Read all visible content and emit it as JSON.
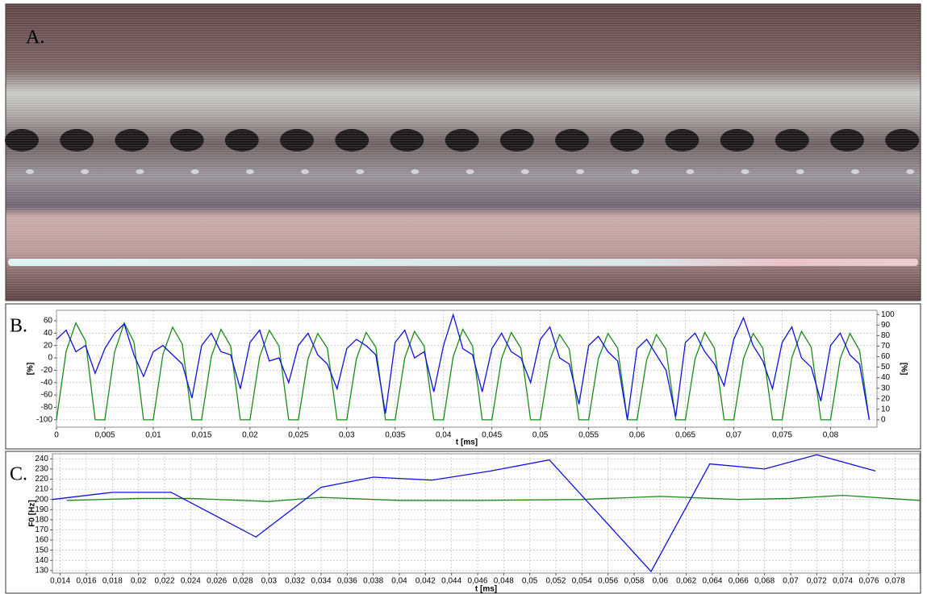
{
  "figure_labels": [
    "A.",
    "B.",
    "C."
  ],
  "chart_data": [
    {
      "type": "line",
      "x_label": "t [ms]",
      "y_label": "[%]",
      "y2_label": "[%]",
      "xlim": [
        0,
        0.0848
      ],
      "ylim": [
        -112,
        77
      ],
      "y2lim": [
        -7,
        104
      ],
      "xticks": [
        0,
        {
          "value": 0.005,
          "label": "0,005"
        },
        {
          "value": 0.01,
          "label": "0,01"
        },
        {
          "value": 0.015,
          "label": "0,015"
        },
        {
          "value": 0.02,
          "label": "0,02"
        },
        {
          "value": 0.025,
          "label": "0,025"
        },
        {
          "value": 0.03,
          "label": "0,03"
        },
        {
          "value": 0.035,
          "label": "0,035"
        },
        {
          "value": 0.04,
          "label": "0,04"
        },
        {
          "value": 0.045,
          "label": "0,045"
        },
        {
          "value": 0.05,
          "label": "0,05"
        },
        {
          "value": 0.055,
          "label": "0,055"
        },
        {
          "value": 0.06,
          "label": "0,06"
        },
        {
          "value": 0.065,
          "label": "0,065"
        },
        {
          "value": 0.07,
          "label": "0,07"
        },
        {
          "value": 0.075,
          "label": "0,075"
        },
        {
          "value": 0.08,
          "label": "0,08"
        }
      ],
      "yticks": [
        -100,
        -80,
        -60,
        -40,
        -20,
        0,
        20,
        40,
        60
      ],
      "y2ticks": [
        0,
        10,
        20,
        30,
        40,
        50,
        60,
        70,
        80,
        90,
        100
      ],
      "grid": true,
      "x": [
        0,
        0.001,
        0.002,
        0.003,
        0.004,
        0.005,
        0.006,
        0.007,
        0.008,
        0.009,
        0.01,
        0.011,
        0.012,
        0.013,
        0.014,
        0.015,
        0.016,
        0.017,
        0.018,
        0.019,
        0.02,
        0.021,
        0.022,
        0.023,
        0.024,
        0.025,
        0.026,
        0.027,
        0.028,
        0.029,
        0.03,
        0.031,
        0.032,
        0.033,
        0.034,
        0.035,
        0.036,
        0.037,
        0.038,
        0.039,
        0.04,
        0.041,
        0.042,
        0.043,
        0.044,
        0.045,
        0.046,
        0.047,
        0.048,
        0.049,
        0.05,
        0.051,
        0.052,
        0.053,
        0.054,
        0.055,
        0.056,
        0.057,
        0.058,
        0.059,
        0.06,
        0.061,
        0.062,
        0.063,
        0.064,
        0.065,
        0.066,
        0.067,
        0.068,
        0.069,
        0.07,
        0.071,
        0.072,
        0.073,
        0.074,
        0.075,
        0.076,
        0.077,
        0.078,
        0.079,
        0.08,
        0.081,
        0.082,
        0.083,
        0.084
      ],
      "series": [
        {
          "color": "#1a8a1a",
          "axis": "y2",
          "values": [
            0,
            65,
            92,
            75,
            0,
            0,
            64,
            92,
            74,
            0,
            0,
            62,
            88,
            72,
            0,
            0,
            60,
            86,
            70,
            0,
            0,
            60,
            85,
            70,
            0,
            0,
            58,
            82,
            68,
            0,
            0,
            58,
            83,
            69,
            0,
            0,
            59,
            84,
            70,
            0,
            0,
            60,
            86,
            70,
            0,
            0,
            58,
            83,
            68,
            0,
            0,
            57,
            81,
            67,
            0,
            0,
            58,
            82,
            68,
            0,
            0,
            57,
            81,
            67,
            0,
            0,
            58,
            83,
            68,
            0,
            0,
            58,
            82,
            68,
            0,
            0,
            59,
            84,
            69,
            0,
            0,
            58,
            82,
            66,
            0
          ]
        },
        {
          "color": "#1010e0",
          "values": [
            30,
            45,
            10,
            20,
            -25,
            15,
            40,
            55,
            5,
            -30,
            10,
            20,
            5,
            -10,
            -65,
            20,
            40,
            10,
            5,
            -50,
            25,
            45,
            -5,
            0,
            -40,
            20,
            40,
            5,
            -10,
            -50,
            15,
            30,
            20,
            5,
            -90,
            25,
            45,
            0,
            10,
            -55,
            20,
            70,
            15,
            5,
            -55,
            15,
            40,
            10,
            0,
            -40,
            30,
            50,
            0,
            -10,
            -75,
            20,
            35,
            10,
            -5,
            -100,
            15,
            30,
            5,
            -20,
            -95,
            25,
            40,
            10,
            -10,
            -45,
            30,
            65,
            20,
            -5,
            -50,
            25,
            50,
            0,
            -15,
            -70,
            20,
            40,
            5,
            -10,
            -100
          ]
        }
      ]
    },
    {
      "type": "line",
      "x_label": "t [ms]",
      "y_label": "F0 [Hz]",
      "xlim": [
        0.0134,
        0.0799
      ],
      "ylim": [
        127.5,
        245
      ],
      "xticks": [
        {
          "value": 0.014,
          "label": "0,014"
        },
        {
          "value": 0.016,
          "label": "0,016"
        },
        {
          "value": 0.018,
          "label": "0,018"
        },
        {
          "value": 0.02,
          "label": "0,02"
        },
        {
          "value": 0.022,
          "label": "0,022"
        },
        {
          "value": 0.024,
          "label": "0,024"
        },
        {
          "value": 0.026,
          "label": "0,026"
        },
        {
          "value": 0.028,
          "label": "0,028"
        },
        {
          "value": 0.03,
          "label": "0,03"
        },
        {
          "value": 0.032,
          "label": "0,032"
        },
        {
          "value": 0.034,
          "label": "0,034"
        },
        {
          "value": 0.036,
          "label": "0,036"
        },
        {
          "value": 0.038,
          "label": "0,038"
        },
        {
          "value": 0.04,
          "label": "0,04"
        },
        {
          "value": 0.042,
          "label": "0,042"
        },
        {
          "value": 0.044,
          "label": "0,044"
        },
        {
          "value": 0.046,
          "label": "0,046"
        },
        {
          "value": 0.048,
          "label": "0,048"
        },
        {
          "value": 0.05,
          "label": "0,05"
        },
        {
          "value": 0.052,
          "label": "0,052"
        },
        {
          "value": 0.054,
          "label": "0,054"
        },
        {
          "value": 0.056,
          "label": "0,056"
        },
        {
          "value": 0.058,
          "label": "0,058"
        },
        {
          "value": 0.06,
          "label": "0,06"
        },
        {
          "value": 0.062,
          "label": "0,062"
        },
        {
          "value": 0.064,
          "label": "0,064"
        },
        {
          "value": 0.066,
          "label": "0,066"
        },
        {
          "value": 0.068,
          "label": "0,068"
        },
        {
          "value": 0.07,
          "label": "0,07"
        },
        {
          "value": 0.072,
          "label": "0,072"
        },
        {
          "value": 0.074,
          "label": "0,074"
        },
        {
          "value": 0.076,
          "label": "0,076"
        },
        {
          "value": 0.078,
          "label": "0,078"
        }
      ],
      "yticks": [
        130,
        140,
        150,
        160,
        170,
        180,
        190,
        200,
        210,
        220,
        230,
        240
      ],
      "grid": true,
      "series": [
        {
          "color": "#1a8a1a",
          "x": [
            0.0145,
            0.02,
            0.024,
            0.03,
            0.034,
            0.04,
            0.046,
            0.054,
            0.06,
            0.066,
            0.07,
            0.074,
            0.0799
          ],
          "values": [
            199,
            201,
            201,
            198,
            202,
            199,
            199,
            200,
            203,
            200,
            201,
            204,
            199
          ]
        },
        {
          "color": "#1010e0",
          "x": [
            0.0134,
            0.018,
            0.0225,
            0.029,
            0.034,
            0.038,
            0.0425,
            0.047,
            0.0515,
            0.0593,
            0.0638,
            0.068,
            0.072,
            0.0765
          ],
          "values": [
            200,
            207,
            207,
            163,
            212,
            222,
            219,
            228,
            239,
            129,
            235,
            230,
            244,
            228
          ]
        }
      ]
    }
  ]
}
